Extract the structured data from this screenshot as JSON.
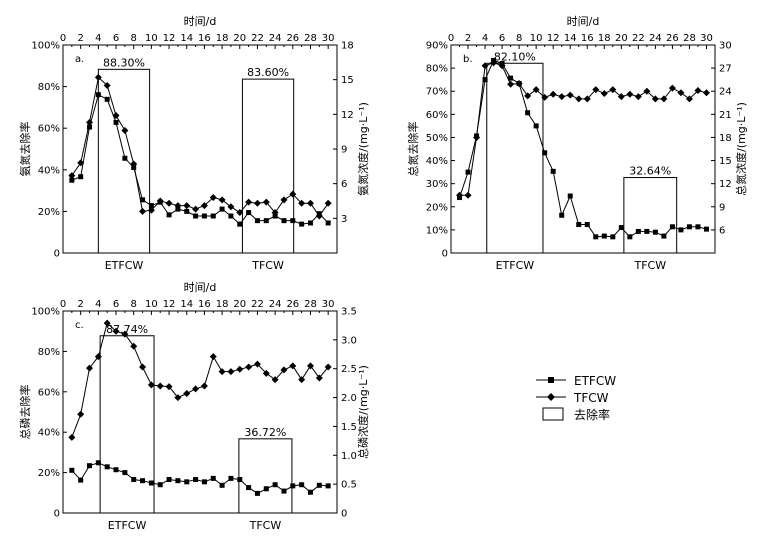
{
  "chart_data": [
    {
      "id": "a",
      "type": "line",
      "panel_label": "a.",
      "top_xlabel": "时间/d",
      "x_ticks": [
        0,
        2,
        4,
        6,
        8,
        10,
        12,
        14,
        16,
        18,
        20,
        22,
        24,
        26,
        28,
        30
      ],
      "xlim": [
        0,
        31
      ],
      "left_ylabel": "氨氮去除率",
      "left_ylim": [
        0,
        100
      ],
      "left_ticks": [
        0,
        20,
        40,
        60,
        80,
        100
      ],
      "left_tick_labels": [
        "0",
        "20%",
        "40%",
        "60%",
        "80%",
        "100%"
      ],
      "right_ylabel": "氨氮浓度/(mg·L⁻¹)",
      "right_ylim": [
        0,
        18
      ],
      "right_ticks": [
        3,
        6,
        9,
        12,
        15,
        18
      ],
      "right_tick_labels": [
        "3",
        "6",
        "9",
        "12",
        "15",
        "18"
      ],
      "bar_categories": [
        "ETFCW",
        "TFCW"
      ],
      "bars": [
        {
          "category": "ETFCW",
          "x_start": 4,
          "x_end": 9.8,
          "value": 88.3,
          "label": "88.30%"
        },
        {
          "category": "TFCW",
          "x_start": 20.3,
          "x_end": 26.1,
          "value": 83.6,
          "label": "83.60%"
        }
      ],
      "series": [
        {
          "name": "ETFCW",
          "marker": "square",
          "x": [
            1,
            2,
            3,
            4,
            5,
            6,
            7,
            8,
            9,
            10,
            11,
            12,
            13,
            14,
            15,
            16,
            17,
            18,
            19,
            20,
            21,
            22,
            23,
            24,
            25,
            26,
            27,
            28,
            29,
            30
          ],
          "values": [
            6.3,
            6.6,
            10.9,
            13.7,
            13.3,
            11.3,
            8.2,
            7.4,
            4.6,
            4.1,
            4.4,
            3.3,
            3.8,
            3.6,
            3.2,
            3.2,
            3.2,
            3.8,
            3.2,
            2.5,
            3.5,
            2.8,
            2.8,
            3.2,
            2.8,
            2.8,
            2.5,
            2.6,
            3.4,
            2.6
          ]
        },
        {
          "name": "TFCW",
          "marker": "diamond",
          "x": [
            1,
            2,
            3,
            4,
            5,
            6,
            7,
            8,
            9,
            10,
            11,
            12,
            13,
            14,
            15,
            16,
            17,
            18,
            19,
            20,
            21,
            22,
            23,
            24,
            25,
            26,
            27,
            28,
            29,
            30
          ],
          "values": [
            6.7,
            7.8,
            11.3,
            15.2,
            14.5,
            11.9,
            10.6,
            7.7,
            3.6,
            3.7,
            4.5,
            4.3,
            4.1,
            4.1,
            3.8,
            4.1,
            4.8,
            4.6,
            4.0,
            3.5,
            4.4,
            4.3,
            4.4,
            3.5,
            4.6,
            5.1,
            4.3,
            4.3,
            3.2,
            4.3
          ]
        }
      ],
      "legend_labels": [
        "ETFCW",
        "TFCW"
      ]
    },
    {
      "id": "b",
      "type": "line",
      "panel_label": "b.",
      "top_xlabel": "时间/d",
      "x_ticks": [
        0,
        2,
        4,
        6,
        8,
        10,
        12,
        14,
        16,
        18,
        20,
        22,
        24,
        26,
        28,
        30
      ],
      "xlim": [
        0,
        31
      ],
      "left_ylabel": "总氮去除率",
      "left_ylim": [
        0,
        90
      ],
      "left_ticks": [
        0,
        10,
        20,
        30,
        40,
        50,
        60,
        70,
        80,
        90
      ],
      "left_tick_labels": [
        "0",
        "10%",
        "20%",
        "30%",
        "40%",
        "50%",
        "60%",
        "70%",
        "80%",
        "90%"
      ],
      "right_ylabel": "总氮浓度/(mg·L⁻¹)",
      "right_ylim": [
        3,
        30
      ],
      "right_ticks": [
        6,
        9,
        12,
        15,
        18,
        21,
        24,
        27,
        30
      ],
      "right_tick_labels": [
        "6",
        "9",
        "12",
        "15",
        "18",
        "21",
        "24",
        "27",
        "30"
      ],
      "bar_categories": [
        "ETFCW",
        "TFCW"
      ],
      "bars": [
        {
          "category": "ETFCW",
          "x_start": 4.2,
          "x_end": 10.8,
          "value": 82.1,
          "label": "82.10%"
        },
        {
          "category": "TFCW",
          "x_start": 20.3,
          "x_end": 26.5,
          "value": 32.64,
          "label": "32.64%"
        }
      ],
      "series": [
        {
          "name": "ETFCW",
          "marker": "square",
          "x": [
            1,
            2,
            3,
            4,
            5,
            6,
            7,
            8,
            9,
            10,
            11,
            12,
            13,
            14,
            15,
            16,
            17,
            18,
            19,
            20,
            21,
            22,
            23,
            24,
            25,
            26,
            27,
            28,
            29,
            30
          ],
          "values": [
            10.2,
            13.5,
            18.2,
            25.5,
            28.0,
            27.6,
            25.7,
            25.0,
            21.2,
            19.5,
            16.0,
            13.6,
            7.9,
            10.4,
            6.7,
            6.7,
            5.1,
            5.2,
            5.1,
            6.3,
            5.1,
            5.8,
            5.8,
            5.7,
            5.2,
            6.4,
            6.0,
            6.4,
            6.4,
            6.1
          ]
        },
        {
          "name": "TFCW",
          "marker": "diamond",
          "x": [
            1,
            2,
            3,
            4,
            5,
            6,
            7,
            8,
            9,
            10,
            11,
            12,
            13,
            14,
            15,
            16,
            17,
            18,
            19,
            20,
            21,
            22,
            23,
            24,
            25,
            26,
            27,
            28,
            29,
            30
          ],
          "values": [
            10.5,
            10.5,
            18.0,
            27.3,
            27.7,
            27.3,
            24.9,
            25.0,
            23.4,
            24.2,
            23.2,
            23.6,
            23.3,
            23.5,
            23.0,
            23.0,
            24.2,
            23.7,
            24.2,
            23.3,
            23.6,
            23.3,
            24.0,
            23.0,
            23.0,
            24.4,
            23.8,
            23.0,
            24.1,
            23.8
          ]
        }
      ],
      "legend_labels": [
        "ETFCW",
        "TFCW"
      ]
    },
    {
      "id": "c",
      "type": "line",
      "panel_label": "c.",
      "top_xlabel": "时间/d",
      "x_ticks": [
        0,
        2,
        4,
        6,
        8,
        10,
        12,
        14,
        16,
        18,
        20,
        22,
        24,
        26,
        28,
        30
      ],
      "xlim": [
        0,
        31
      ],
      "left_ylabel": "总磷去除率",
      "left_ylim": [
        0,
        100
      ],
      "left_ticks": [
        0,
        20,
        40,
        60,
        80,
        100
      ],
      "left_tick_labels": [
        "0",
        "20%",
        "40%",
        "60%",
        "80%",
        "100%"
      ],
      "right_ylabel": "总磷浓度/(mg·L⁻¹)",
      "right_ylim": [
        0,
        3.5
      ],
      "right_ticks": [
        0,
        0.5,
        1.0,
        1.5,
        2.0,
        2.5,
        3.0,
        3.5
      ],
      "right_tick_labels": [
        "0",
        "0.5",
        "1.0",
        "1.5",
        "2.0",
        "2.5",
        "3.0",
        "3.5"
      ],
      "bar_categories": [
        "ETFCW",
        "TFCW"
      ],
      "bars": [
        {
          "category": "ETFCW",
          "x_start": 4.2,
          "x_end": 10.3,
          "value": 87.74,
          "label": "87.74%"
        },
        {
          "category": "TFCW",
          "x_start": 19.9,
          "x_end": 25.9,
          "value": 36.72,
          "label": "36.72%"
        }
      ],
      "series": [
        {
          "name": "ETFCW",
          "marker": "square",
          "x": [
            1,
            2,
            3,
            4,
            5,
            6,
            7,
            8,
            9,
            10,
            11,
            12,
            13,
            14,
            15,
            16,
            17,
            18,
            19,
            20,
            21,
            22,
            23,
            24,
            25,
            26,
            27,
            28,
            29,
            30
          ],
          "values": [
            0.74,
            0.57,
            0.82,
            0.87,
            0.8,
            0.75,
            0.7,
            0.58,
            0.56,
            0.52,
            0.49,
            0.58,
            0.56,
            0.54,
            0.58,
            0.54,
            0.6,
            0.48,
            0.6,
            0.58,
            0.44,
            0.34,
            0.42,
            0.49,
            0.38,
            0.47,
            0.49,
            0.36,
            0.48,
            0.47
          ]
        },
        {
          "name": "TFCW",
          "marker": "diamond",
          "x": [
            1,
            2,
            3,
            4,
            5,
            6,
            7,
            8,
            9,
            10,
            11,
            12,
            13,
            14,
            15,
            16,
            17,
            18,
            19,
            20,
            21,
            22,
            23,
            24,
            25,
            26,
            27,
            28,
            29,
            30
          ],
          "values": [
            1.31,
            1.71,
            2.51,
            2.71,
            3.29,
            3.15,
            3.1,
            2.89,
            2.53,
            2.22,
            2.2,
            2.19,
            2.0,
            2.07,
            2.15,
            2.2,
            2.71,
            2.45,
            2.45,
            2.49,
            2.53,
            2.58,
            2.42,
            2.31,
            2.48,
            2.55,
            2.31,
            2.55,
            2.34,
            2.53
          ]
        }
      ],
      "legend_labels": [
        "ETFCW",
        "TFCW"
      ]
    }
  ],
  "legend": {
    "items": [
      {
        "label": "ETFCW",
        "marker": "square"
      },
      {
        "label": "TFCW",
        "marker": "diamond"
      },
      {
        "label": "去除率",
        "marker": "box"
      }
    ]
  }
}
